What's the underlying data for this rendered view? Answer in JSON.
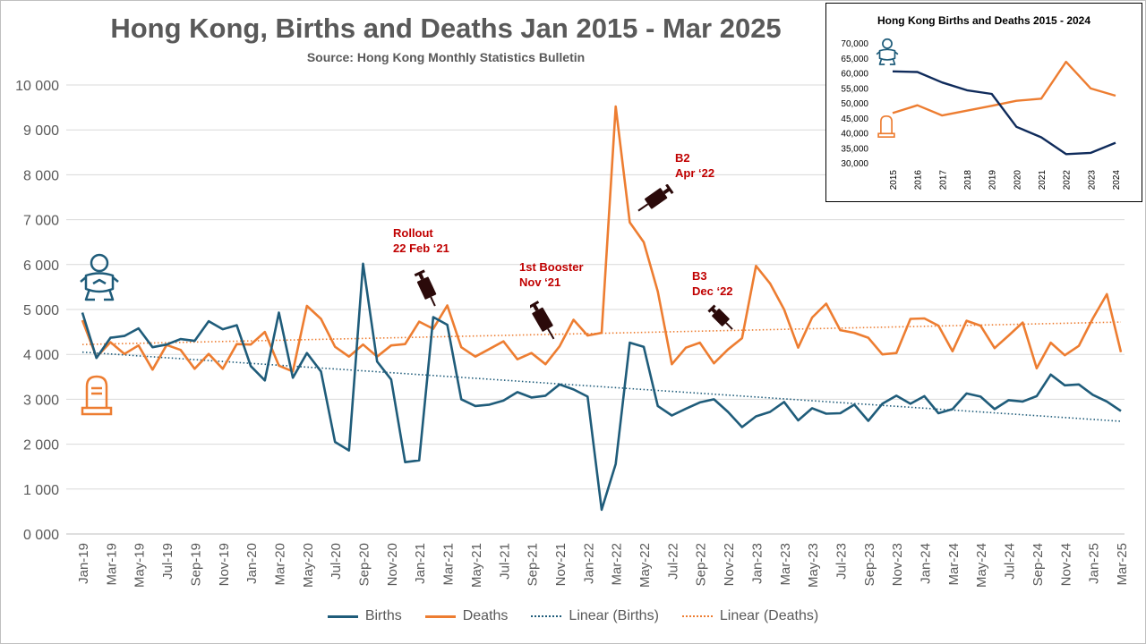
{
  "title": "Hong Kong, Births and Deaths Jan 2015 - Mar 2025",
  "subtitle": "Source: Hong Kong Monthly Statistics Bulletin",
  "colors": {
    "births": "#1f5c7a",
    "deaths": "#ed7d31",
    "inset_births": "#0f2b5b",
    "inset_deaths": "#ed7d31",
    "annotation": "#c00000",
    "grid": "#d9d9d9"
  },
  "annotations": [
    {
      "lines": [
        "Rollout",
        "22 Feb ‘21"
      ]
    },
    {
      "lines": [
        "1st Booster",
        "Nov ‘21"
      ]
    },
    {
      "lines": [
        "B2",
        "Apr ‘22"
      ]
    },
    {
      "lines": [
        "B3",
        "Dec ‘22"
      ]
    }
  ],
  "legend": {
    "births": "Births",
    "deaths": "Deaths",
    "linear_births": "Linear (Births)",
    "linear_deaths": "Linear (Deaths)"
  },
  "icons": {
    "births": "baby-icon",
    "deaths": "gravestone-icon",
    "vaccine": "syringe-icon"
  },
  "chart_data": [
    {
      "type": "line",
      "title": "Hong Kong, Births and Deaths Jan 2015 - Mar 2025",
      "subtitle": "Source: Hong Kong Monthly Statistics Bulletin",
      "ylim": [
        0,
        10000
      ],
      "yticks": [
        "0 000",
        "1 000",
        "2 000",
        "3 000",
        "4 000",
        "5 000",
        "6 000",
        "7 000",
        "8 000",
        "9 000",
        "10 000"
      ],
      "x_tick_labels": [
        "Jan-19",
        "Mar-19",
        "May-19",
        "Jul-19",
        "Sep-19",
        "Nov-19",
        "Jan-20",
        "Mar-20",
        "May-20",
        "Jul-20",
        "Sep-20",
        "Nov-20",
        "Jan-21",
        "Mar-21",
        "May-21",
        "Jul-21",
        "Sep-21",
        "Nov-21",
        "Jan-22",
        "Mar-22",
        "May-22",
        "Jul-22",
        "Sep-22",
        "Nov-22",
        "Jan-23",
        "Mar-23",
        "May-23",
        "Jul-23",
        "Sep-23",
        "Nov-23",
        "Jan-24",
        "Mar-24",
        "May-24",
        "Jul-24",
        "Sep-24",
        "Nov-24",
        "Jan-25",
        "Mar-25"
      ],
      "series": [
        {
          "name": "Births",
          "values": [
            4930,
            3920,
            4370,
            4410,
            4580,
            4160,
            4220,
            4340,
            4300,
            4740,
            4560,
            4650,
            3740,
            3420,
            4930,
            3480,
            4030,
            3620,
            2050,
            1860,
            6020,
            3840,
            3440,
            1600,
            1640,
            4830,
            4660,
            3000,
            2850,
            2880,
            2970,
            3160,
            3040,
            3080,
            3330,
            3220,
            3060,
            540,
            1560,
            4260,
            4170,
            2850,
            2640,
            2790,
            2930,
            3000,
            2720,
            2380,
            2620,
            2720,
            2940,
            2530,
            2800,
            2680,
            2690,
            2880,
            2520,
            2900,
            3080,
            2900,
            3070,
            2690,
            2780,
            3130,
            3060,
            2780,
            2980,
            2950,
            3070,
            3550,
            3310,
            3330,
            3100,
            2950,
            2740
          ]
        },
        {
          "name": "Deaths",
          "values": [
            4760,
            3940,
            4270,
            4010,
            4200,
            3660,
            4210,
            4100,
            3680,
            4010,
            3680,
            4230,
            4220,
            4500,
            3750,
            3620,
            5080,
            4790,
            4170,
            3950,
            4220,
            3950,
            4200,
            4230,
            4730,
            4570,
            5090,
            4160,
            3950,
            4120,
            4290,
            3890,
            4030,
            3780,
            4180,
            4770,
            4420,
            4480,
            9520,
            6940,
            6500,
            5400,
            3780,
            4150,
            4260,
            3800,
            4110,
            4360,
            5970,
            5580,
            5000,
            4150,
            4820,
            5130,
            4540,
            4480,
            4370,
            4000,
            4030,
            4790,
            4800,
            4640,
            4070,
            4750,
            4640,
            4140,
            4420,
            4710,
            3690,
            4260,
            3980,
            4190,
            4800,
            5340,
            4050
          ]
        },
        {
          "name": "Linear (Births)",
          "values_endpoints": [
            4050,
            2510
          ]
        },
        {
          "name": "Linear (Deaths)",
          "values_endpoints": [
            4220,
            4720
          ]
        }
      ],
      "legend_position": "bottom",
      "grid": true
    },
    {
      "type": "line",
      "title": "Hong Kong Births and Deaths 2015 - 2024",
      "categories": [
        "2015",
        "2016",
        "2017",
        "2018",
        "2019",
        "2020",
        "2021",
        "2022",
        "2023",
        "2024"
      ],
      "ylim": [
        30000,
        70000
      ],
      "yticks": [
        "30,000",
        "35,000",
        "40,000",
        "45,000",
        "50,000",
        "55,000",
        "60,000",
        "65,000",
        "70,000"
      ],
      "series": [
        {
          "values": [
            60500,
            60300,
            56800,
            54200,
            53000,
            42000,
            38500,
            32900,
            33300,
            36700
          ]
        },
        {
          "values": [
            46600,
            49200,
            45800,
            47400,
            49000,
            50700,
            51400,
            63700,
            54800,
            52400
          ]
        }
      ],
      "grid": false
    }
  ]
}
